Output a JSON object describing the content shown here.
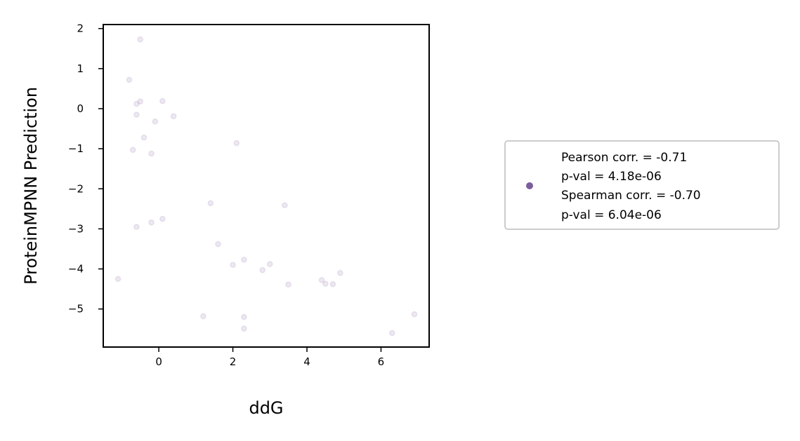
{
  "chart_data": {
    "type": "scatter",
    "xlabel": "ddG",
    "ylabel": "ProteinMPNN Prediction",
    "xlim": [
      -1.5,
      7.3
    ],
    "ylim": [
      -5.95,
      2.1
    ],
    "xticks": [
      0,
      2,
      4,
      6
    ],
    "yticks": [
      2,
      1,
      0,
      -1,
      -2,
      -3,
      -4,
      -5
    ],
    "xtick_labels": [
      "0",
      "2",
      "4",
      "6"
    ],
    "ytick_labels": [
      "2",
      "1",
      "0",
      "−1",
      "−2",
      "−3",
      "−4",
      "−5"
    ],
    "grid": false,
    "point_color": "#8464a0",
    "point_alpha": 0.15,
    "legend_placement": "outside right",
    "legend": {
      "marker_color": "#7b5e9c",
      "lines": [
        "Pearson corr. = -0.71",
        "p-val = 4.18e-06",
        "Spearman corr. = -0.70",
        "p-val = 6.04e-06"
      ]
    },
    "series": [
      {
        "points": [
          {
            "x": -0.5,
            "y": 1.73
          },
          {
            "x": -0.8,
            "y": 0.72
          },
          {
            "x": -0.5,
            "y": 0.18
          },
          {
            "x": -0.6,
            "y": 0.12
          },
          {
            "x": 0.1,
            "y": 0.19
          },
          {
            "x": -0.6,
            "y": -0.15
          },
          {
            "x": 0.4,
            "y": -0.19
          },
          {
            "x": -0.1,
            "y": -0.32
          },
          {
            "x": -0.4,
            "y": -0.72
          },
          {
            "x": -0.7,
            "y": -1.03
          },
          {
            "x": -0.2,
            "y": -1.12
          },
          {
            "x": 2.1,
            "y": -0.86
          },
          {
            "x": 1.4,
            "y": -2.36
          },
          {
            "x": 3.4,
            "y": -2.41
          },
          {
            "x": 0.1,
            "y": -2.75
          },
          {
            "x": -0.2,
            "y": -2.84
          },
          {
            "x": -0.6,
            "y": -2.95
          },
          {
            "x": 1.6,
            "y": -3.38
          },
          {
            "x": 2.3,
            "y": -3.77
          },
          {
            "x": 2.0,
            "y": -3.9
          },
          {
            "x": 3.0,
            "y": -3.88
          },
          {
            "x": 2.8,
            "y": -4.03
          },
          {
            "x": 4.9,
            "y": -4.1
          },
          {
            "x": -1.1,
            "y": -4.25
          },
          {
            "x": 4.4,
            "y": -4.28
          },
          {
            "x": 4.5,
            "y": -4.37
          },
          {
            "x": 4.7,
            "y": -4.38
          },
          {
            "x": 3.5,
            "y": -4.39
          },
          {
            "x": 1.2,
            "y": -5.18
          },
          {
            "x": 2.3,
            "y": -5.2
          },
          {
            "x": 2.3,
            "y": -5.49
          },
          {
            "x": 6.9,
            "y": -5.13
          },
          {
            "x": 6.3,
            "y": -5.6
          }
        ]
      }
    ]
  }
}
